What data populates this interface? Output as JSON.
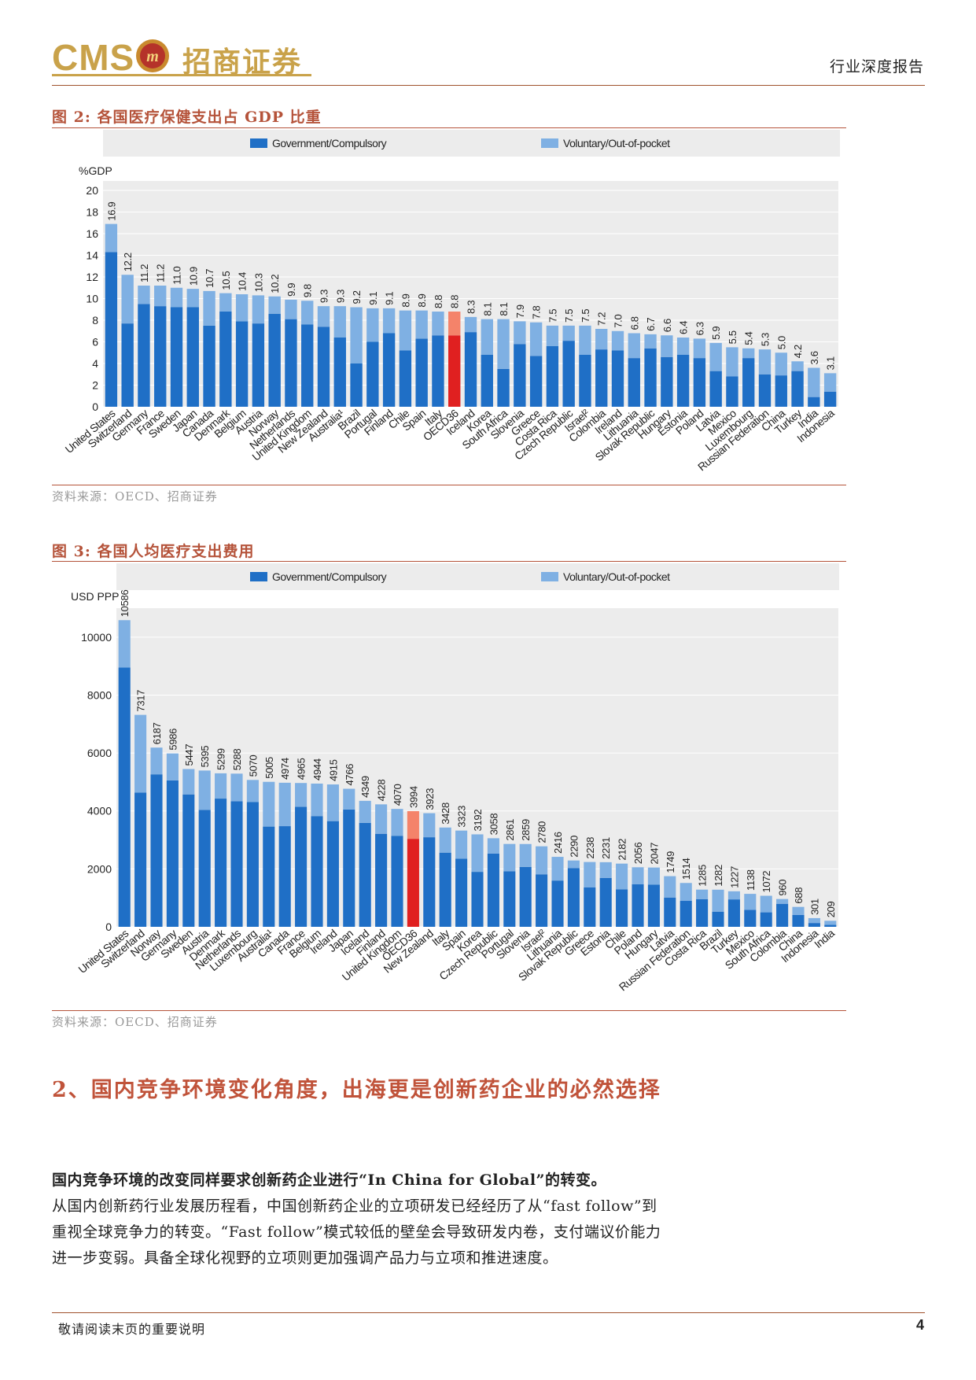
{
  "header": {
    "logo_text": "CMS",
    "logo_cn": "招商证券",
    "report_type": "行业深度报告"
  },
  "figures": [
    {
      "title": "图 2: 各国医疗保健支出占 GDP 比重",
      "source": "资料来源：OECD、招商证券"
    },
    {
      "title": "图 3: 各国人均医疗支出费用",
      "source": "资料来源：OECD、招商证券"
    }
  ],
  "colors": {
    "government": "#1f6fc6",
    "voluntary": "#7fb0e3",
    "highlight_government": "#e02020",
    "highlight_voluntary": "#f4836a",
    "plot_bg": "#ececec",
    "accent": "#b5533a"
  },
  "chart_data": [
    {
      "type": "bar",
      "stacked": true,
      "ylabel": "%GDP",
      "ylim": [
        0,
        20
      ],
      "yticks": [
        0,
        2,
        4,
        6,
        8,
        10,
        12,
        14,
        16,
        18,
        20
      ],
      "grid": true,
      "legend_position": "top",
      "highlight_category": "OECD36",
      "categories": [
        "United States",
        "Switzerland",
        "Germany",
        "France",
        "Sweden",
        "Japan",
        "Canada",
        "Denmark",
        "Belgium",
        "Austria",
        "Norway",
        "Netherlands",
        "United Kingdom",
        "New Zealand",
        "Australia¹",
        "Brazil",
        "Portugal",
        "Finland",
        "Chile",
        "Spain",
        "Italy",
        "OECD36",
        "Iceland",
        "Korea",
        "South Africa",
        "Slovenia",
        "Greece",
        "Costa Rica",
        "Czech Republic",
        "Israel²",
        "Colombia",
        "Ireland",
        "Lithuania",
        "Slovak Republic",
        "Hungary",
        "Estonia",
        "Poland",
        "Latvia",
        "Mexico",
        "Luxembourg",
        "Russian Federation",
        "China",
        "Turkey",
        "India",
        "Indonesia"
      ],
      "totals": [
        16.9,
        12.2,
        11.2,
        11.2,
        11.0,
        10.9,
        10.7,
        10.5,
        10.4,
        10.3,
        10.2,
        9.9,
        9.8,
        9.3,
        9.3,
        9.2,
        9.1,
        9.1,
        8.9,
        8.9,
        8.8,
        8.8,
        8.3,
        8.1,
        8.1,
        7.9,
        7.8,
        7.5,
        7.5,
        7.5,
        7.2,
        7.0,
        6.8,
        6.7,
        6.6,
        6.4,
        6.3,
        5.9,
        5.5,
        5.4,
        5.3,
        5.0,
        4.2,
        3.6,
        3.1
      ],
      "total_labels": [
        "16.9",
        "12.2",
        "11.2",
        "11.2",
        "11.0",
        "10.9",
        "10.7",
        "10.5",
        "10.4",
        "10.3",
        "10.2",
        "9.9",
        "9.8",
        "9.3",
        "9.3",
        "9.2",
        "9.1",
        "9.1",
        "8.9",
        "8.9",
        "8.8",
        "8.8",
        "8.3",
        "8.1",
        "8.1",
        "7.9",
        "7.8",
        "7.5",
        "7.5",
        "7.5",
        "7.2",
        "7.0",
        "6.8",
        "6.7",
        "6.6",
        "6.4",
        "6.3",
        "5.9",
        "5.5",
        "5.4",
        "5.3",
        "5.0",
        "4.2",
        "3.6",
        "3.1"
      ],
      "series": [
        {
          "name": "Government/Compulsory",
          "values": [
            14.3,
            7.7,
            9.5,
            9.3,
            9.2,
            9.2,
            7.5,
            8.8,
            7.9,
            7.7,
            8.6,
            8.1,
            7.6,
            7.4,
            6.4,
            4.0,
            6.0,
            6.8,
            5.2,
            6.3,
            6.6,
            6.6,
            6.9,
            4.8,
            3.5,
            5.8,
            4.7,
            5.6,
            6.1,
            4.8,
            5.3,
            5.2,
            4.5,
            5.4,
            4.6,
            4.8,
            4.5,
            3.3,
            2.8,
            4.5,
            3.0,
            2.9,
            3.3,
            0.9,
            1.4
          ]
        },
        {
          "name": "Voluntary/Out-of-pocket",
          "values": [
            2.6,
            4.5,
            1.7,
            1.9,
            1.8,
            1.7,
            3.2,
            1.7,
            2.5,
            2.6,
            1.6,
            1.8,
            2.2,
            1.9,
            2.9,
            5.2,
            3.1,
            2.3,
            3.7,
            2.6,
            2.2,
            2.2,
            1.4,
            3.3,
            4.6,
            2.1,
            3.1,
            1.9,
            1.4,
            2.7,
            1.9,
            1.8,
            2.3,
            1.3,
            2.0,
            1.6,
            1.8,
            2.6,
            2.7,
            0.9,
            2.3,
            2.1,
            0.9,
            2.7,
            1.7
          ]
        }
      ]
    },
    {
      "type": "bar",
      "stacked": true,
      "ylabel": "USD PPP",
      "ylim": [
        0,
        11000
      ],
      "yticks": [
        0,
        2000,
        4000,
        6000,
        8000,
        10000
      ],
      "grid": true,
      "legend_position": "top",
      "highlight_category": "OECD36",
      "categories": [
        "United States",
        "Switzerland",
        "Norway",
        "Germany",
        "Sweden",
        "Austria",
        "Denmark",
        "Netherlands",
        "Luxembourg",
        "Australia¹",
        "Canada",
        "France",
        "Belgium",
        "Ireland",
        "Japan",
        "Iceland",
        "Finland",
        "United Kingdom",
        "OECD36",
        "New Zealand",
        "Italy",
        "Spain",
        "Korea",
        "Czech Republic",
        "Portugal",
        "Slovenia",
        "Israel²",
        "Lithuania",
        "Slovak Republic",
        "Greece",
        "Estonia",
        "Chile",
        "Poland",
        "Hungary",
        "Latvia",
        "Russian Federation",
        "Costa Rica",
        "Brazil",
        "Turkey",
        "Mexico",
        "South Africa",
        "Colombia",
        "China",
        "Indonesia",
        "India"
      ],
      "totals": [
        10586,
        7317,
        6187,
        5986,
        5447,
        5395,
        5299,
        5288,
        5070,
        5005,
        4974,
        4965,
        4944,
        4915,
        4766,
        4349,
        4228,
        4070,
        3994,
        3923,
        3428,
        3323,
        3192,
        3058,
        2861,
        2859,
        2780,
        2416,
        2290,
        2238,
        2231,
        2182,
        2056,
        2047,
        1749,
        1514,
        1285,
        1282,
        1227,
        1138,
        1072,
        960,
        688,
        301,
        209
      ],
      "total_labels": [
        "10586",
        "7317",
        "6187",
        "5986",
        "5447",
        "5395",
        "5299",
        "5288",
        "5070",
        "5005",
        "4974",
        "4965",
        "4944",
        "4915",
        "4766",
        "4349",
        "4228",
        "4070",
        "3994",
        "3923",
        "3428",
        "3323",
        "3192",
        "3058",
        "2861",
        "2859",
        "2780",
        "2416",
        "2290",
        "2238",
        "2231",
        "2182",
        "2056",
        "2047",
        "1749",
        "1514",
        "1285",
        "1282",
        "1227",
        "1138",
        "1072",
        "960",
        "688",
        "301",
        "209"
      ],
      "series": [
        {
          "name": "Government/Compulsory",
          "values": [
            8949,
            4637,
            5264,
            5056,
            4571,
            4039,
            4426,
            4335,
            4305,
            3460,
            3475,
            4141,
            3823,
            3649,
            4051,
            3589,
            3212,
            3138,
            3038,
            3093,
            2561,
            2349,
            1898,
            2528,
            1918,
            2068,
            1813,
            1598,
            2028,
            1358,
            1689,
            1296,
            1467,
            1453,
            1011,
            896,
            957,
            524,
            947,
            589,
            500,
            795,
            409,
            132,
            67
          ]
        },
        {
          "name": "Voluntary/Out-of-pocket",
          "values": [
            1637,
            2680,
            923,
            930,
            876,
            1356,
            873,
            953,
            765,
            1545,
            1499,
            824,
            1121,
            1266,
            715,
            760,
            1016,
            932,
            956,
            830,
            867,
            974,
            1294,
            530,
            943,
            791,
            967,
            818,
            262,
            880,
            542,
            886,
            589,
            594,
            738,
            618,
            328,
            758,
            280,
            549,
            572,
            165,
            279,
            169,
            142
          ]
        }
      ]
    }
  ],
  "section": {
    "title": "2、国内竞争环境变化角度，出海更是创新药企业的必然选择"
  },
  "paragraph": {
    "lead": "国内竞争环境的改变同样要求创新药企业进行“In China for Global”的转变。",
    "body": "从国内创新药行业发展历程看，中国创新药企业的立项研发已经经历了从“fast follow”到重视全球竞争力的转变。“Fast follow”模式较低的壁垒会导致研发内卷，支付端议价能力进一步变弱。具备全球化视野的立项则更加强调产品力与立项和推进速度。"
  },
  "footer": {
    "note": "敬请阅读末页的重要说明",
    "page": "4"
  }
}
